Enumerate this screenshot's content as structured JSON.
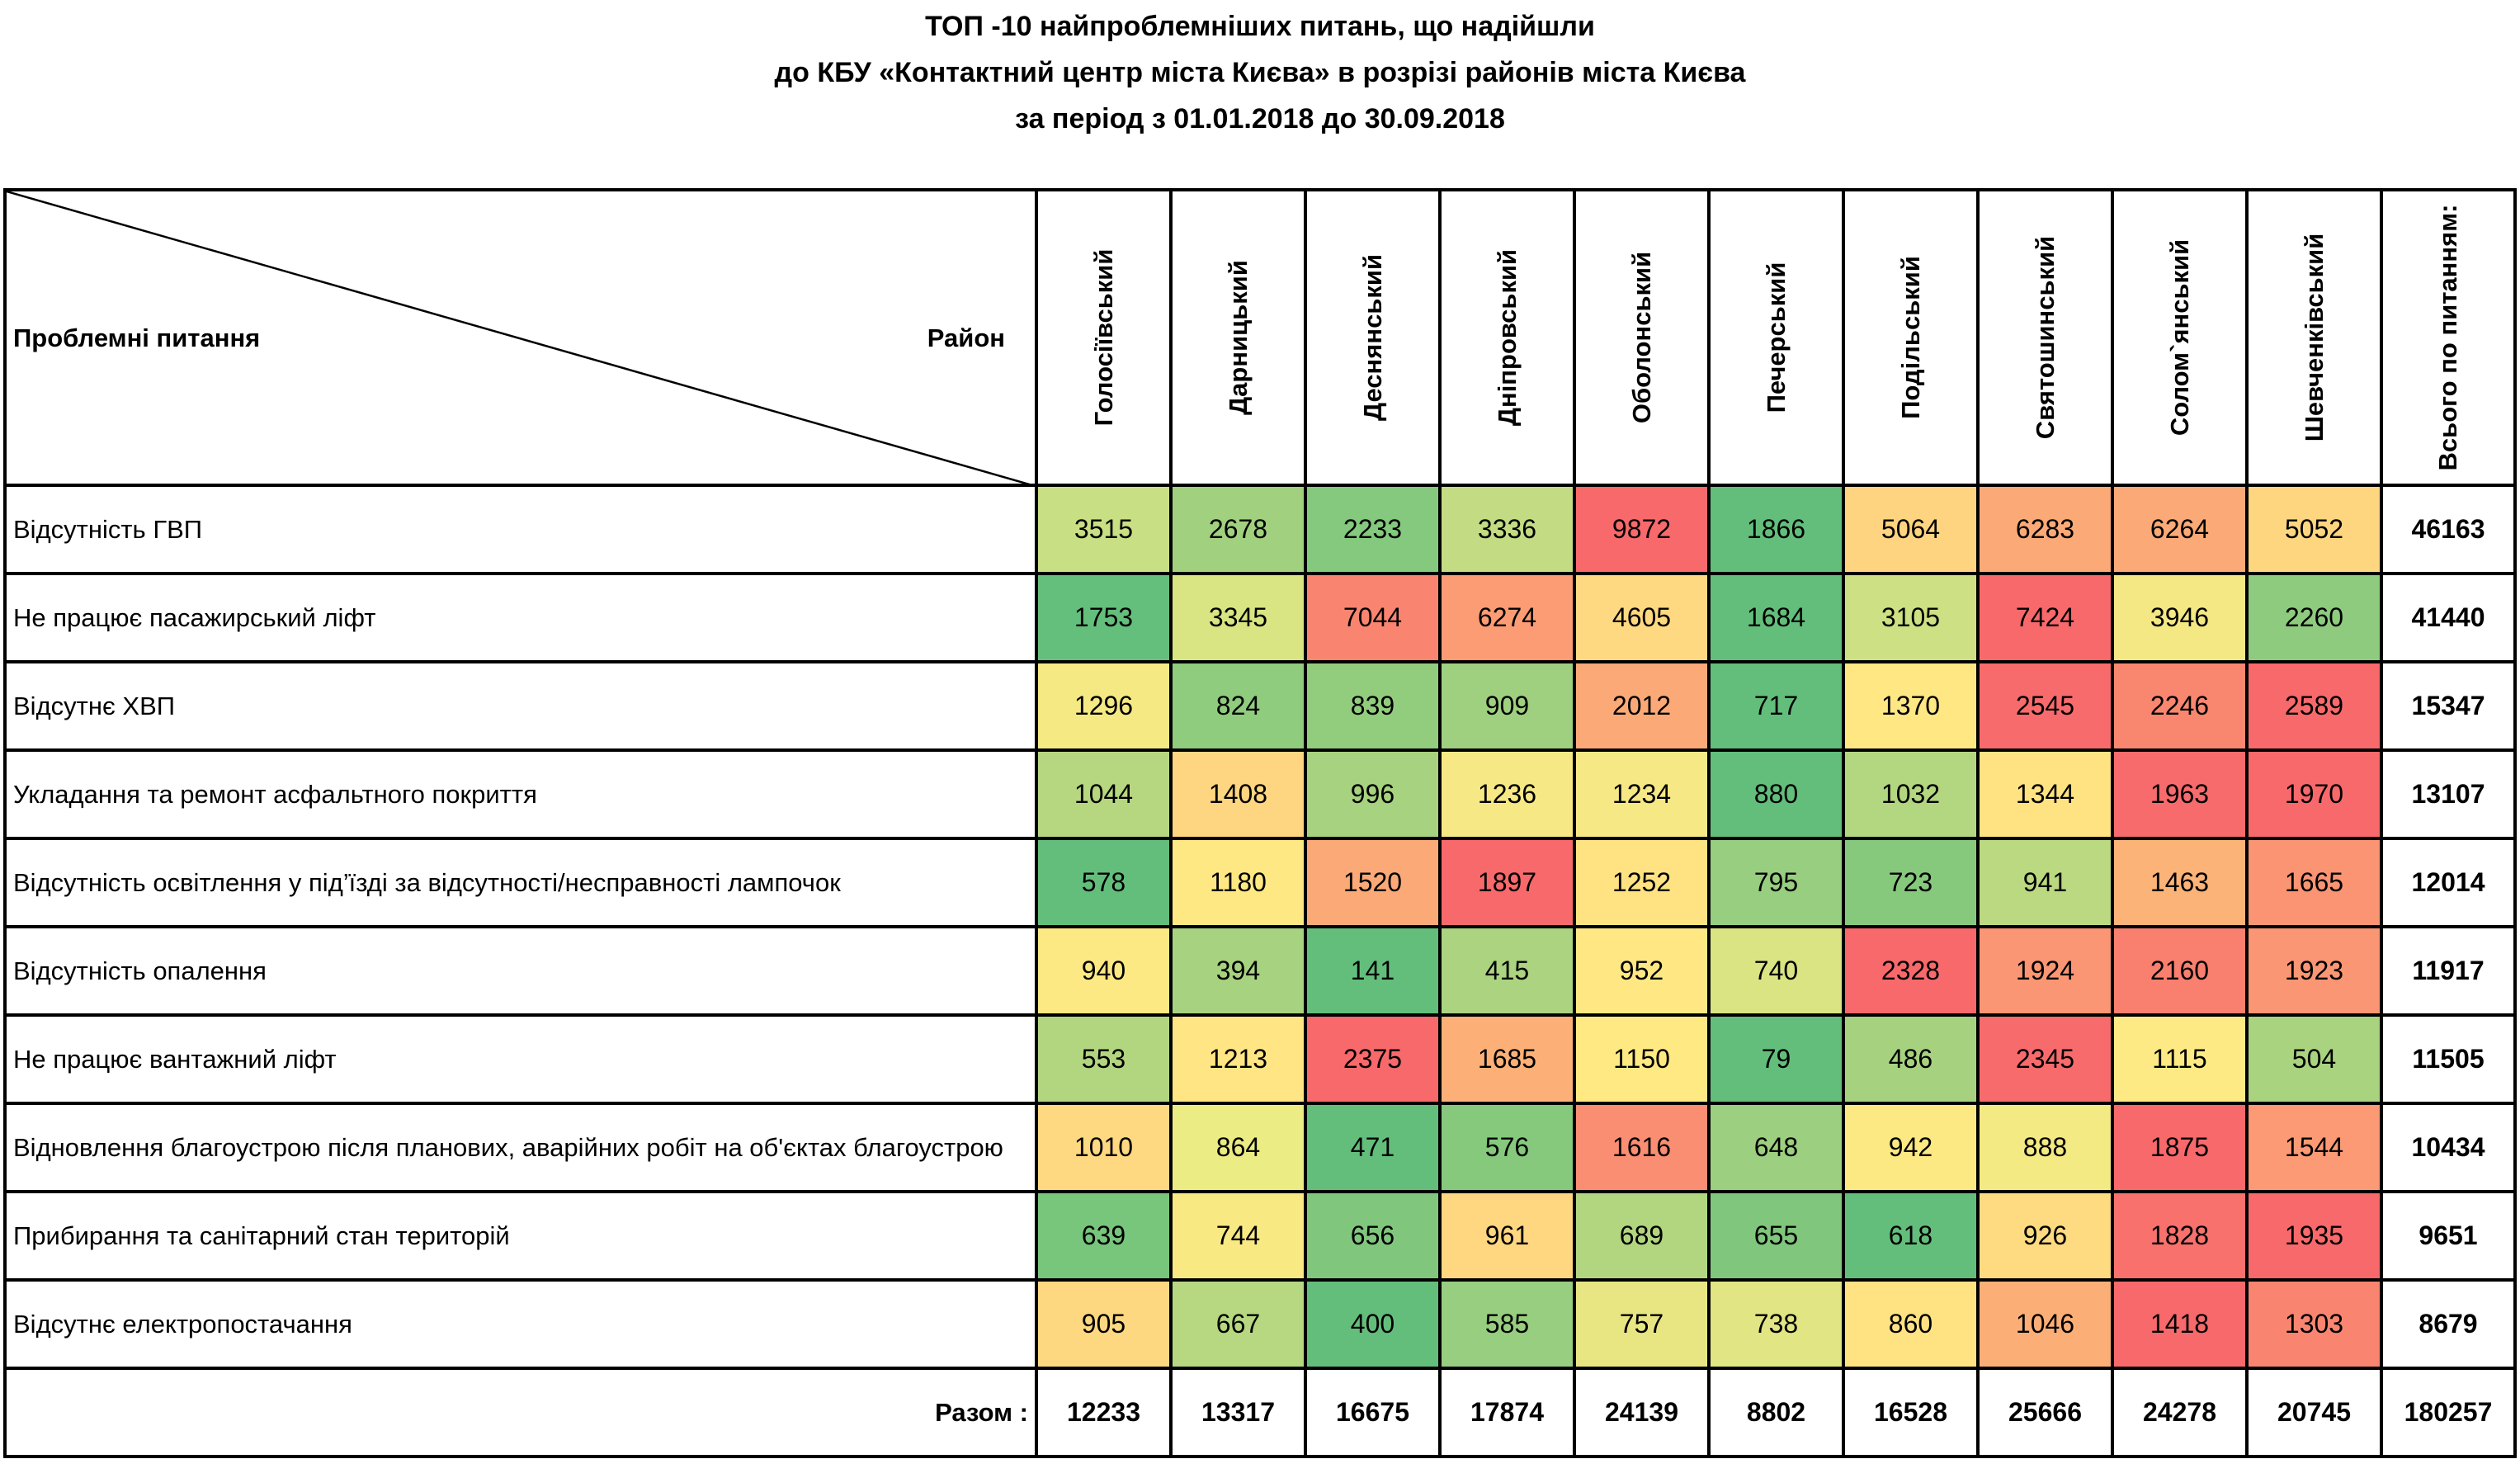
{
  "title": {
    "line1": "ТОП -10  найпроблемніших питань, що надійшли",
    "line2": "до КБУ «Контактний центр міста Києва»  в розрізі районів міста Києва",
    "line3": "за період з 01.01.2018 до 30.09.2018"
  },
  "corner": {
    "left": "Проблемні питання",
    "right": "Район"
  },
  "districts": [
    "Голосіївський",
    "Дарницький",
    "Деснянський",
    "Дніпровський",
    "Оболонський",
    "Печерський",
    "Подільський",
    "Святошинський",
    "Солом`янський",
    "Шевченківський"
  ],
  "total_header": "Всього по питанням:",
  "rows": [
    {
      "issue": "Відсутність ГВП",
      "values": [
        "3515",
        "2678",
        "2233",
        "3336",
        "9872",
        "1866",
        "5064",
        "6283",
        "6264",
        "5052"
      ],
      "total": "46163",
      "colors": [
        "#c9df84",
        "#a1d07f",
        "#84c97d",
        "#c3dc83",
        "#f8696b",
        "#63be7b",
        "#fed480",
        "#fbaa77",
        "#fbaa77",
        "#fed680"
      ]
    },
    {
      "issue": "Не працює пасажирський ліфт",
      "values": [
        "1753",
        "3345",
        "7044",
        "6274",
        "4605",
        "1684",
        "3105",
        "7424",
        "3946",
        "2260"
      ],
      "total": "41440",
      "colors": [
        "#65bf7c",
        "#d9e582",
        "#f98570",
        "#fb9c75",
        "#fed981",
        "#63be7b",
        "#cde083",
        "#f8696b",
        "#f4e884",
        "#8ecb7e"
      ]
    },
    {
      "issue": "Відсутнє ХВП",
      "values": [
        "1296",
        "824",
        "839",
        "909",
        "2012",
        "717",
        "1370",
        "2545",
        "2246",
        "2589"
      ],
      "total": "15347",
      "colors": [
        "#f5e984",
        "#8fcc7e",
        "#92cd7e",
        "#9fd07f",
        "#fbaa77",
        "#63be7b",
        "#ffe884",
        "#f86b6c",
        "#f98770",
        "#f8696b"
      ]
    },
    {
      "issue": "Укладання та ремонт асфальтного покриття",
      "values": [
        "1044",
        "1408",
        "996",
        "1236",
        "1234",
        "880",
        "1032",
        "1344",
        "1963",
        "1970"
      ],
      "total": "13107",
      "colors": [
        "#b6d780",
        "#fed580",
        "#a7d27f",
        "#f6e884",
        "#f6e884",
        "#63be7b",
        "#b3d680",
        "#ffe382",
        "#f86b6c",
        "#f8696b"
      ]
    },
    {
      "issue": "Відсутність освітлення у під’їзді за відсутності/несправності лампочок",
      "values": [
        "578",
        "1180",
        "1520",
        "1897",
        "1252",
        "795",
        "723",
        "941",
        "1463",
        "1665"
      ],
      "total": "12014",
      "colors": [
        "#63be7b",
        "#fee883",
        "#fbaa77",
        "#f8696b",
        "#ffe382",
        "#98ce7f",
        "#86c97d",
        "#bbd980",
        "#fcb378",
        "#fa9473"
      ]
    },
    {
      "issue": "Відсутність опалення",
      "values": [
        "940",
        "394",
        "141",
        "415",
        "952",
        "740",
        "2328",
        "1924",
        "2160",
        "1923"
      ],
      "total": "11917",
      "colors": [
        "#fde983",
        "#a7d27f",
        "#63be7b",
        "#abd380",
        "#ffe884",
        "#dae482",
        "#f8696b",
        "#fa9673",
        "#f97f6f",
        "#fa9673"
      ]
    },
    {
      "issue": "Не працює вантажний ліфт",
      "values": [
        "553",
        "1213",
        "2375",
        "1685",
        "1150",
        "79",
        "486",
        "2345",
        "1115",
        "504"
      ],
      "total": "11505",
      "colors": [
        "#b2d680",
        "#ffe583",
        "#f8696b",
        "#fcb077",
        "#fee983",
        "#63be7b",
        "#a6d27f",
        "#f86b6c",
        "#fdea84",
        "#a9d37f"
      ]
    },
    {
      "issue": "Відновлення благоустрою після планових, аварійних робіт на об'єктах благоустрою",
      "values": [
        "1010",
        "864",
        "471",
        "576",
        "1616",
        "648",
        "942",
        "888",
        "1875",
        "1544"
      ],
      "total": "10434",
      "colors": [
        "#fed981",
        "#ecec84",
        "#63be7b",
        "#86c97d",
        "#fa8e72",
        "#9ccf7f",
        "#fde983",
        "#f4ea84",
        "#f8696b",
        "#fb9a74"
      ]
    },
    {
      "issue": "Прибирання та санітарний стан територій",
      "values": [
        "639",
        "744",
        "656",
        "961",
        "689",
        "655",
        "618",
        "926",
        "1828",
        "1935"
      ],
      "total": "9651",
      "colors": [
        "#78c57c",
        "#f9e983",
        "#80c77d",
        "#fed780",
        "#b2d680",
        "#80c77d",
        "#63be7b",
        "#fedb81",
        "#f8716d",
        "#f8696b"
      ]
    },
    {
      "issue": "Відсутнє електропостачання",
      "values": [
        "905",
        "667",
        "400",
        "585",
        "757",
        "738",
        "860",
        "1046",
        "1418",
        "1303"
      ],
      "total": "8679",
      "colors": [
        "#fed880",
        "#b7d880",
        "#63be7b",
        "#98ce7f",
        "#e8e683",
        "#e1e583",
        "#ffe282",
        "#fbaf77",
        "#f8696b",
        "#f98570"
      ]
    }
  ],
  "totals_row": {
    "label": "Разом :",
    "values": [
      "12233",
      "13317",
      "16675",
      "17874",
      "24139",
      "8802",
      "16528",
      "25666",
      "24278",
      "20745"
    ],
    "grand_total": "180257"
  }
}
